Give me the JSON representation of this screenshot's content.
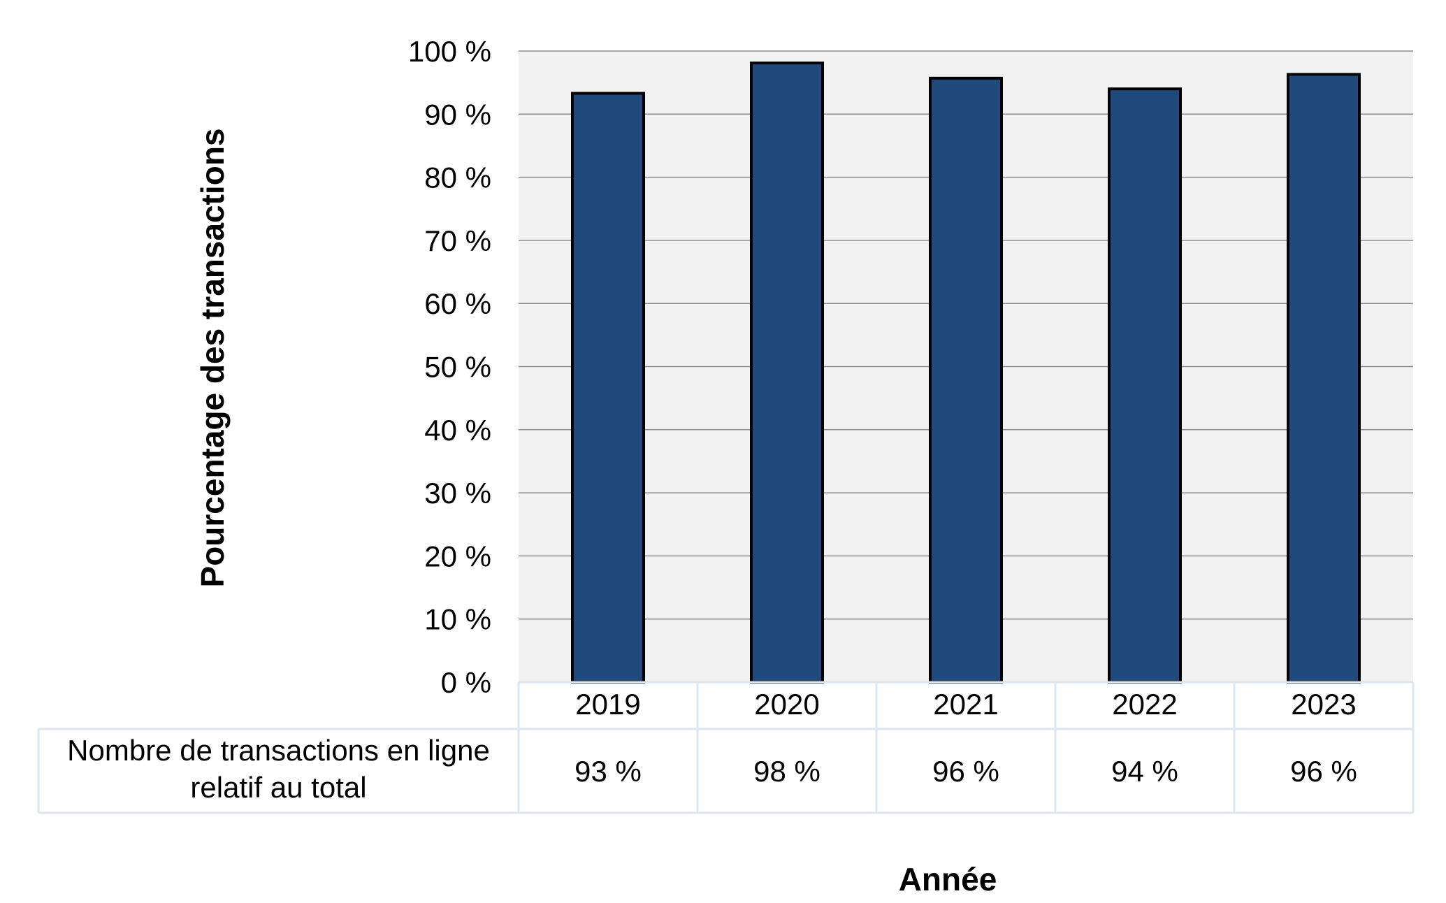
{
  "chart_data": {
    "type": "bar",
    "title": "",
    "xlabel": "Année",
    "ylabel": "Pourcentage des transactions",
    "ylim": [
      0,
      100
    ],
    "yticks": [
      "0 %",
      "10 %",
      "20 %",
      "30 %",
      "40 %",
      "50 %",
      "60 %",
      "70 %",
      "80 %",
      "90 %",
      "100 %"
    ],
    "categories": [
      "2019",
      "2020",
      "2021",
      "2022",
      "2023"
    ],
    "values": [
      93.3,
      98.1,
      95.7,
      94.0,
      96.3
    ],
    "grid": true,
    "bar_color": "#214a7c",
    "plot_background": "#f2f2f2",
    "table": {
      "row_label_lines": [
        "Nombre de transactions en ligne",
        "relatif au total"
      ],
      "cells": [
        "93 %",
        "98 %",
        "96 %",
        "94 %",
        "96 %"
      ]
    }
  }
}
